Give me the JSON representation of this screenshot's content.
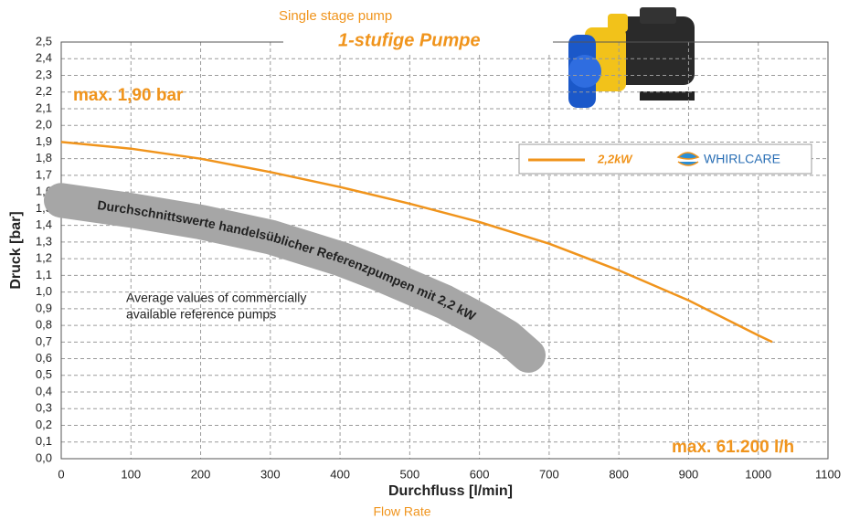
{
  "chart_data": {
    "type": "line",
    "subtitle": "Single stage pump",
    "title": "1-stufige Pumpe",
    "xlabel": "Durchfluss [l/min]",
    "xlabel_en": "Flow Rate",
    "ylabel": "Druck [bar]",
    "xlim": [
      0,
      1100
    ],
    "ylim": [
      0,
      2.5
    ],
    "xticks": [
      0,
      100,
      200,
      300,
      400,
      500,
      600,
      700,
      800,
      900,
      1000,
      1100
    ],
    "yticks": [
      {
        "value": 0,
        "label": "0,0"
      },
      {
        "value": 0.1,
        "label": "0,1"
      },
      {
        "value": 0.2,
        "label": "0,2"
      },
      {
        "value": 0.3,
        "label": "0,3"
      },
      {
        "value": 0.4,
        "label": "0,4"
      },
      {
        "value": 0.5,
        "label": "0,5"
      },
      {
        "value": 0.6,
        "label": "0,6"
      },
      {
        "value": 0.7,
        "label": "0,7"
      },
      {
        "value": 0.8,
        "label": "0,8"
      },
      {
        "value": 0.9,
        "label": "0,9"
      },
      {
        "value": 1.0,
        "label": "1,0"
      },
      {
        "value": 1.1,
        "label": "1,1"
      },
      {
        "value": 1.2,
        "label": "1,2"
      },
      {
        "value": 1.3,
        "label": "1,3"
      },
      {
        "value": 1.4,
        "label": "1,4"
      },
      {
        "value": 1.5,
        "label": "1,5"
      },
      {
        "value": 1.6,
        "label": "1,6"
      },
      {
        "value": 1.7,
        "label": "1,7"
      },
      {
        "value": 1.8,
        "label": "1,8"
      },
      {
        "value": 1.9,
        "label": "1,9"
      },
      {
        "value": 2.0,
        "label": "2,0"
      },
      {
        "value": 2.1,
        "label": "2,1"
      },
      {
        "value": 2.2,
        "label": "2,2"
      },
      {
        "value": 2.3,
        "label": "2,3"
      },
      {
        "value": 2.4,
        "label": "2,4"
      },
      {
        "value": 2.5,
        "label": "2,5"
      }
    ],
    "grid": true,
    "series": [
      {
        "name": "2,2kW",
        "color": "#f0941c",
        "x": [
          0,
          100,
          200,
          300,
          400,
          500,
          600,
          700,
          800,
          900,
          1000,
          1020
        ],
        "values": [
          1.9,
          1.86,
          1.8,
          1.72,
          1.63,
          1.53,
          1.42,
          1.29,
          1.13,
          0.95,
          0.74,
          0.7
        ]
      },
      {
        "name": "Durchschnittswerte handelsüblicher Referenzpumpen mit 2,2 kW",
        "color": "#a6a6a6",
        "x": [
          0,
          100,
          200,
          300,
          400,
          450,
          500,
          550,
          600,
          640,
          670
        ],
        "values": [
          1.55,
          1.49,
          1.42,
          1.33,
          1.2,
          1.12,
          1.03,
          0.94,
          0.83,
          0.73,
          0.62
        ]
      }
    ],
    "legend_brand": "WHIRLCARE",
    "annotations": {
      "max_pressure": "max. 1,90 bar",
      "max_flow": "max. 61.200 l/h",
      "reference_note": [
        "Average values of commercially",
        "available reference pumps"
      ]
    }
  }
}
